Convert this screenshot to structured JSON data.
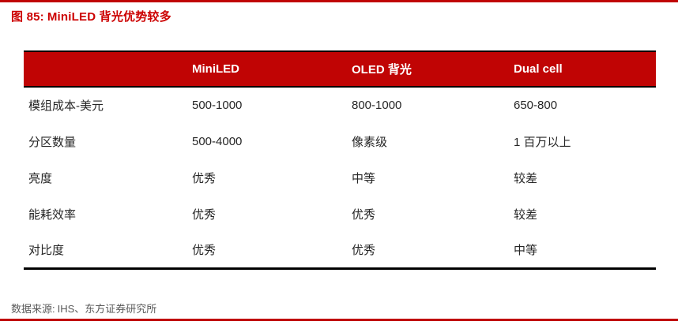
{
  "header": {
    "figure_label": "图 85:",
    "title": "MiniLED 背光优势较多"
  },
  "table": {
    "columns": [
      "",
      "MiniLED",
      "OLED 背光",
      "Dual cell"
    ],
    "rows": [
      {
        "label": "模组成本-美元",
        "values": [
          "500-1000",
          "800-1000",
          "650-800"
        ]
      },
      {
        "label": "分区数量",
        "values": [
          "500-4000",
          "像素级",
          "1 百万以上"
        ]
      },
      {
        "label": "亮度",
        "values": [
          "优秀",
          "中等",
          "较差"
        ]
      },
      {
        "label": "能耗效率",
        "values": [
          "优秀",
          "优秀",
          "较差"
        ]
      },
      {
        "label": "对比度",
        "values": [
          "优秀",
          "优秀",
          "中等"
        ]
      }
    ]
  },
  "footer": {
    "source_label": "数据来源:",
    "source_text": "IHS、东方证券研究所"
  },
  "colors": {
    "accent_red": "#c00404",
    "title_red": "#cc0000",
    "header_text": "#ffffff",
    "body_text": "#262626",
    "source_gray": "#595959"
  }
}
